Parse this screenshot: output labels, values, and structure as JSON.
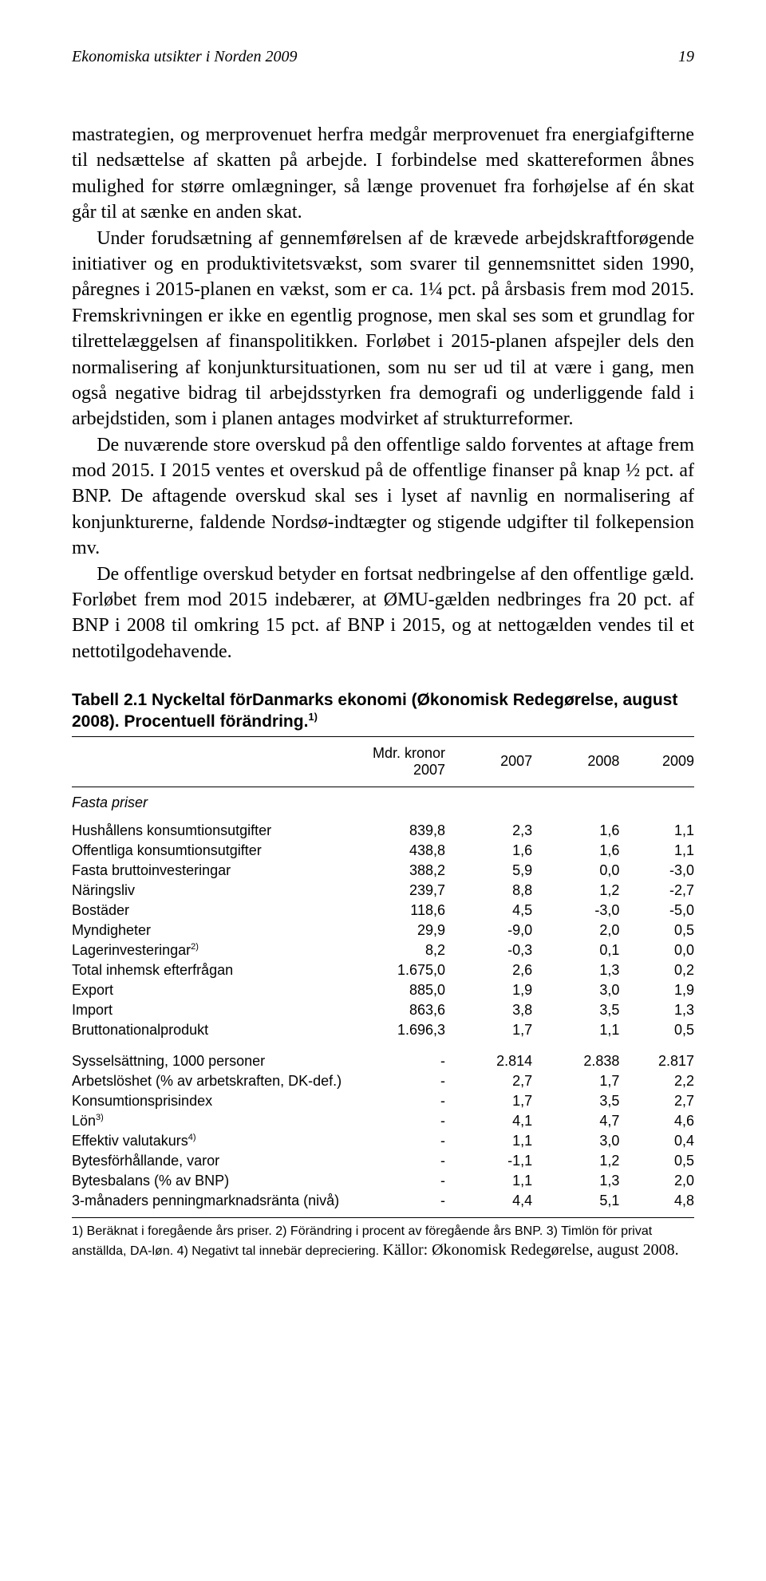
{
  "header": {
    "title": "Ekonomiska utsikter i Norden 2009",
    "page": "19"
  },
  "para": {
    "p1": "mastrategien, og merprovenuet herfra medgår merprovenuet fra energiafgifterne til nedsættelse af skatten på arbejde. I forbindelse med skattereformen åbnes mulighed for større omlægninger, så længe provenuet fra forhøjelse af én skat går til at sænke en anden skat.",
    "p2": "Under forudsætning af gennemførelsen af de krævede arbejdskraftforøgende initiativer og en produktivitetsvækst, som svarer til gennemsnittet siden 1990, påregnes i 2015-planen en vækst, som er ca. 1¼ pct. på årsbasis frem mod 2015. Fremskrivningen er ikke en egentlig prognose, men skal ses som et grundlag for tilrettelæggelsen af finanspolitikken. Forløbet i 2015-planen afspejler dels den normalisering af konjunktursituationen, som nu ser ud til at være i gang, men også negative bidrag til arbejdsstyrken fra demografi og underliggende fald i arbejdstiden, som i planen antages modvirket af strukturreformer.",
    "p3": "De nuværende store overskud på den offentlige saldo forventes at aftage frem mod 2015. I 2015 ventes et overskud på de offentlige finanser på knap ½ pct. af BNP. De aftagende overskud skal ses i lyset af navnlig en normalisering af konjunkturerne, faldende Nordsø-indtægter og stigende udgifter til folkepension mv.",
    "p4": "De offentlige overskud betyder en fortsat nedbringelse af den offentlige gæld. Forløbet frem mod 2015 indebærer, at ØMU-gælden nedbringes fra 20 pct. af BNP i 2008 til omkring 15 pct. af BNP i 2015, og at nettogælden vendes til et nettotilgodehavende."
  },
  "table": {
    "title_a": "Tabell 2.1 Nyckeltal förDanmarks ekonomi (Økonomisk Redegørelse, august 2008).",
    "title_b": "Procentuell förändring.",
    "title_sup": "1)",
    "columns": {
      "c0": "Mdr. kronor 2007",
      "c1": "2007",
      "c2": "2008",
      "c3": "2009"
    },
    "section1": "Fasta priser",
    "rows1": [
      {
        "l": "Hushållens konsumtionsutgifter",
        "v": "839,8",
        "a": "2,3",
        "b": "1,6",
        "c": "1,1"
      },
      {
        "l": "Offentliga konsumtionsutgifter",
        "v": "438,8",
        "a": "1,6",
        "b": "1,6",
        "c": "1,1"
      },
      {
        "l": "Fasta bruttoinvesteringar",
        "v": "388,2",
        "a": "5,9",
        "b": "0,0",
        "c": "-3,0"
      },
      {
        "l": "Näringsliv",
        "v": "239,7",
        "a": "8,8",
        "b": "1,2",
        "c": "-2,7"
      },
      {
        "l": "Bostäder",
        "v": "118,6",
        "a": "4,5",
        "b": "-3,0",
        "c": "-5,0"
      },
      {
        "l": "Myndigheter",
        "v": "29,9",
        "a": "-9,0",
        "b": "2,0",
        "c": "0,5"
      },
      {
        "l": "Lagerinvesteringar",
        "sup": "2)",
        "v": "8,2",
        "a": "-0,3",
        "b": "0,1",
        "c": "0,0"
      },
      {
        "l": "Total inhemsk efterfrågan",
        "v": "1.675,0",
        "a": "2,6",
        "b": "1,3",
        "c": "0,2"
      },
      {
        "l": "Export",
        "v": "885,0",
        "a": "1,9",
        "b": "3,0",
        "c": "1,9"
      },
      {
        "l": "Import",
        "v": "863,6",
        "a": "3,8",
        "b": "3,5",
        "c": "1,3"
      },
      {
        "l": "Bruttonationalprodukt",
        "v": "1.696,3",
        "a": "1,7",
        "b": "1,1",
        "c": "0,5"
      }
    ],
    "rows2": [
      {
        "l": "Sysselsättning, 1000 personer",
        "v": "-",
        "a": "2.814",
        "b": "2.838",
        "c": "2.817"
      },
      {
        "l": "Arbetslöshet (% av arbetskraften, DK-def.)",
        "v": "-",
        "a": "2,7",
        "b": "1,7",
        "c": "2,2"
      },
      {
        "l": "Konsumtionsprisindex",
        "v": "-",
        "a": "1,7",
        "b": "3,5",
        "c": "2,7"
      },
      {
        "l": "Lön",
        "sup": "3)",
        "v": "-",
        "a": "4,1",
        "b": "4,7",
        "c": "4,6"
      },
      {
        "l": "Effektiv valutakurs",
        "sup": "4)",
        "v": "-",
        "a": "1,1",
        "b": "3,0",
        "c": "0,4"
      },
      {
        "l": "Bytesförhållande, varor",
        "v": "-",
        "a": "-1,1",
        "b": "1,2",
        "c": "0,5"
      },
      {
        "l": "Bytesbalans (% av BNP)",
        "v": "-",
        "a": "1,1",
        "b": "1,3",
        "c": "2,0"
      },
      {
        "l": "3-månaders penningmarknadsränta (nivå)",
        "v": "-",
        "a": "4,4",
        "b": "5,1",
        "c": "4,8"
      }
    ],
    "footnote": "1) Beräknat i foregående års priser. 2) Förändring i procent av föregående års BNP. 3) Timlön för privat anställda, DA-løn. 4) Negativt tal innebär depreciering. ",
    "source": "Källor: Økonomisk Redegørelse, august 2008."
  }
}
